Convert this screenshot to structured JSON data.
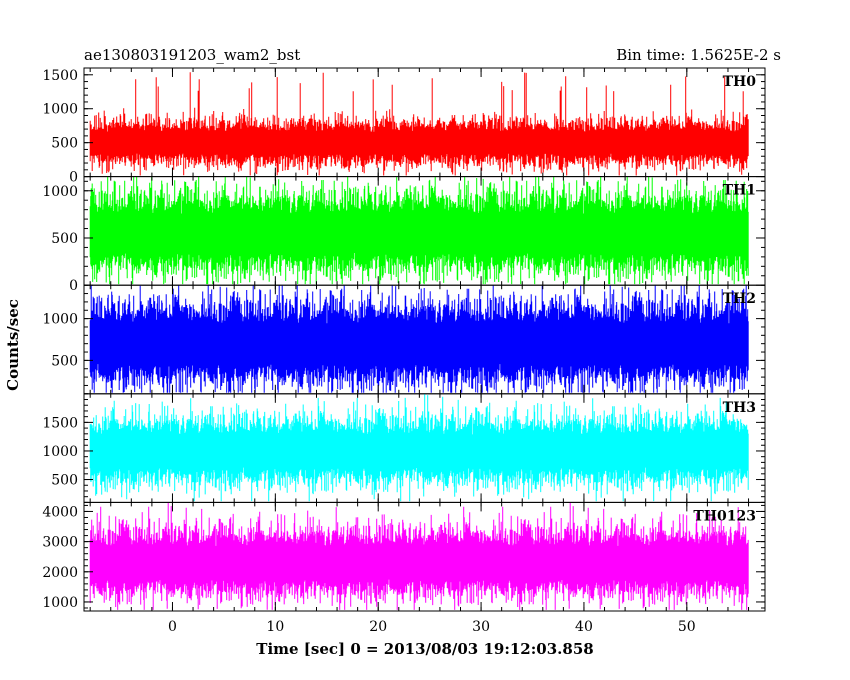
{
  "chart_data": {
    "type": "line",
    "title": "ae130803191203_wam2_bst",
    "subtitle": "Bin time: 1.5625E-2 s",
    "xlabel": "Time [sec] 0 = 2013/08/03 19:12:03.858",
    "ylabel": "Counts/sec",
    "xlim": [
      -8.6,
      57.6
    ],
    "data_x_range": [
      -8,
      56
    ],
    "x_ticks": [
      0,
      10,
      20,
      30,
      40,
      50
    ],
    "x_tick_labels": [
      "0",
      "10",
      "20",
      "30",
      "40",
      "50"
    ],
    "grid": false,
    "panels": [
      {
        "name": "TH0",
        "color": "#ff0000",
        "ylim": [
          0,
          1600
        ],
        "y_ticks": [
          0,
          500,
          1000,
          1500
        ],
        "y_tick_labels": [
          "0",
          "500",
          "1000",
          "1500"
        ],
        "mean": 500,
        "typical_low": 150,
        "typical_high": 850,
        "peak_max": 1550
      },
      {
        "name": "TH1",
        "color": "#00ff00",
        "ylim": [
          0,
          1150
        ],
        "y_ticks": [
          0,
          500,
          1000
        ],
        "y_tick_labels": [
          "0",
          "500",
          "1000"
        ],
        "mean": 550,
        "typical_low": 100,
        "typical_high": 1000,
        "peak_max": 1150
      },
      {
        "name": "TH2",
        "color": "#0000ff",
        "ylim": [
          100,
          1400
        ],
        "y_ticks": [
          500,
          1000
        ],
        "y_tick_labels": [
          "500",
          "1000"
        ],
        "mean": 700,
        "typical_low": 200,
        "typical_high": 1250,
        "peak_max": 1400
      },
      {
        "name": "TH3",
        "color": "#00ffff",
        "ylim": [
          100,
          2000
        ],
        "y_ticks": [
          500,
          1000,
          1500
        ],
        "y_tick_labels": [
          "500",
          "1000",
          "1500"
        ],
        "mean": 1000,
        "typical_low": 350,
        "typical_high": 1600,
        "peak_max": 2000
      },
      {
        "name": "TH0123",
        "color": "#ff00ff",
        "ylim": [
          700,
          4300
        ],
        "y_ticks": [
          1000,
          2000,
          3000,
          4000
        ],
        "y_tick_labels": [
          "1000",
          "2000",
          "3000",
          "4000"
        ],
        "mean": 2300,
        "typical_low": 1200,
        "typical_high": 3600,
        "peak_max": 4300
      }
    ]
  }
}
